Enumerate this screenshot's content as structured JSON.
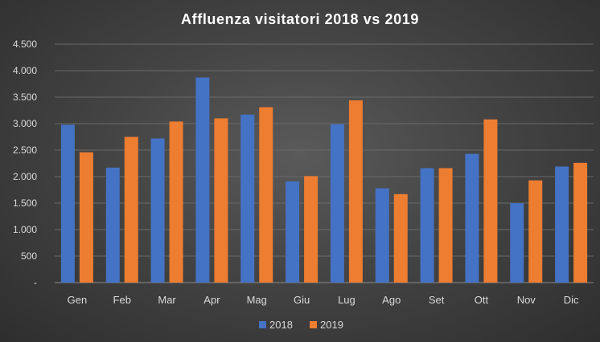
{
  "chart_data": {
    "type": "bar",
    "title": "Affluenza  visitatori  2018 vs 2019",
    "categories": [
      "Gen",
      "Feb",
      "Mar",
      "Apr",
      "Mag",
      "Giu",
      "Lug",
      "Ago",
      "Set",
      "Ott",
      "Nov",
      "Dic"
    ],
    "series": [
      {
        "name": "2018",
        "color": "#4472c4",
        "values": [
          2980,
          2170,
          2720,
          3870,
          3170,
          1910,
          2990,
          1780,
          2160,
          2430,
          1500,
          2190
        ]
      },
      {
        "name": "2019",
        "color": "#ed7d31",
        "values": [
          2460,
          2750,
          3040,
          3100,
          3310,
          2010,
          3440,
          1670,
          2160,
          3080,
          1930,
          2260
        ]
      }
    ],
    "yticks": [
      "-",
      "500",
      "1.000",
      "1.500",
      "2.000",
      "2.500",
      "3.000",
      "3.500",
      "4.000",
      "4.500"
    ],
    "ylim": [
      0,
      4500
    ],
    "grid": true,
    "legend": "bottom"
  }
}
